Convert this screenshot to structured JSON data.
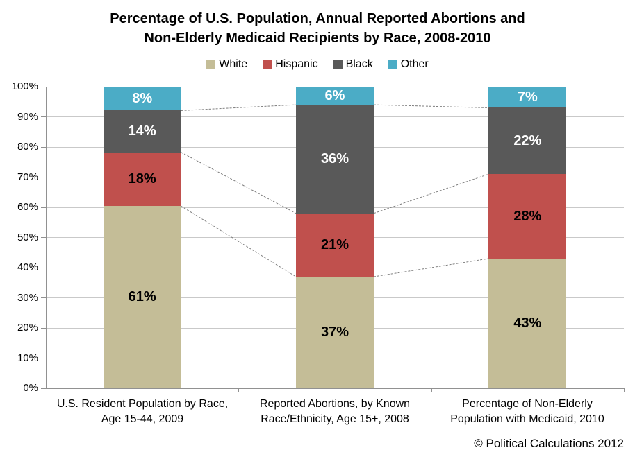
{
  "header": {
    "title_lines": [
      "Percentage of U.S. Population, Annual Reported Abortions and",
      "Non-Elderly Medicaid Recipients by Race, 2008-2010"
    ]
  },
  "chart_data": {
    "type": "bar",
    "subtype": "stacked-100-percent-column",
    "title": "Percentage of U.S. Population, Annual Reported Abortions and Non-Elderly Medicaid Recipients by Race, 2008-2010",
    "categories": [
      "U.S. Resident Population by Race, Age 15-44, 2009",
      "Reported Abortions, by Known Race/Ethnicity, Age 15+, 2008",
      "Percentage of Non-Elderly Population with Medicaid, 2010"
    ],
    "series": [
      {
        "name": "White",
        "color": "#C4BD97",
        "label_color": "#000000",
        "values": [
          61,
          37,
          43
        ]
      },
      {
        "name": "Hispanic",
        "color": "#C0504D",
        "label_color": "#000000",
        "values": [
          18,
          21,
          28
        ]
      },
      {
        "name": "Black",
        "color": "#595959",
        "label_color": "#FFFFFF",
        "values": [
          14,
          36,
          22
        ]
      },
      {
        "name": "Other",
        "color": "#4BACC6",
        "label_color": "#FFFFFF",
        "values": [
          8,
          6,
          7
        ]
      }
    ],
    "xlabel": "",
    "ylabel": "",
    "ylim": [
      0,
      100
    ],
    "ytick_step": 10,
    "ytick_suffix": "%",
    "grid": true,
    "legend_position": "top",
    "series_connector_lines": true,
    "colors": {
      "gridline": "#C9C9C9",
      "axis": "#919191",
      "connector_line": "#7F7F7F"
    }
  },
  "footer": {
    "credit": "© Political Calculations 2012"
  }
}
